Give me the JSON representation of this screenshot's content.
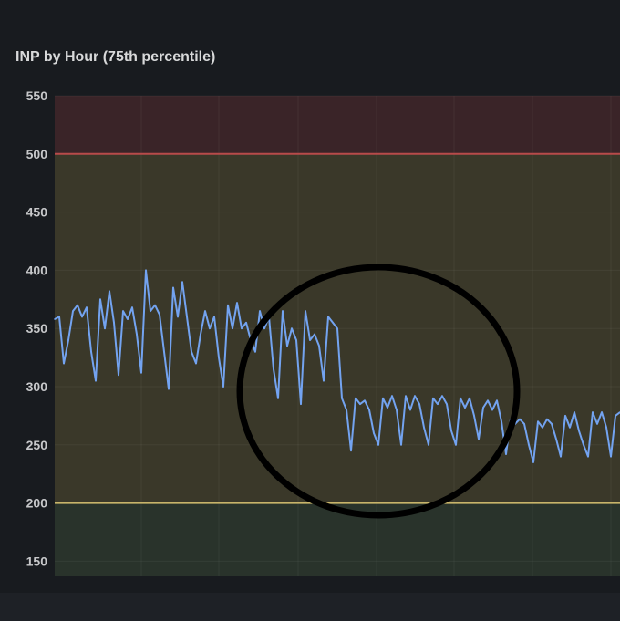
{
  "panel": {
    "title": "INP by Hour (75th percentile)"
  },
  "chart_data": {
    "type": "line",
    "title": "INP by Hour (75th percentile)",
    "xlabel": "",
    "ylabel": "",
    "ylim": [
      137,
      550
    ],
    "yticks": [
      150,
      200,
      250,
      300,
      350,
      400,
      450,
      500,
      550
    ],
    "grid": true,
    "legend": "none",
    "thresholds": [
      {
        "value": 500,
        "color": "#b84a4a",
        "band_color": "#3a2428"
      },
      {
        "value": 200,
        "color": "#c8b46a",
        "band_color": "#3a3829"
      }
    ],
    "base_band_color": "#29332b",
    "line_color": "#73a3f0",
    "annotation": {
      "shape": "circle",
      "color": "#000000"
    },
    "series": [
      {
        "values": [
          358,
          360,
          320,
          340,
          365,
          370,
          360,
          368,
          330,
          305,
          375,
          350,
          382,
          355,
          310,
          365,
          358,
          368,
          345,
          312,
          400,
          365,
          370,
          362,
          330,
          298,
          385,
          360,
          390,
          360,
          330,
          320,
          345,
          365,
          350,
          360,
          325,
          300,
          370,
          350,
          372,
          350,
          355,
          340,
          330,
          365,
          350,
          360,
          315,
          290,
          365,
          335,
          350,
          340,
          285,
          365,
          340,
          345,
          335,
          305,
          360,
          355,
          350,
          290,
          280,
          245,
          290,
          285,
          288,
          280,
          260,
          250,
          290,
          282,
          292,
          280,
          250,
          292,
          280,
          292,
          285,
          265,
          250,
          290,
          285,
          292,
          285,
          262,
          250,
          290,
          282,
          290,
          275,
          255,
          282,
          288,
          280,
          288,
          270,
          242,
          272,
          268,
          272,
          268,
          250,
          235,
          270,
          265,
          272,
          268,
          255,
          240,
          275,
          265,
          278,
          262,
          250,
          240,
          278,
          268,
          278,
          265,
          240,
          275,
          278
        ]
      }
    ]
  }
}
